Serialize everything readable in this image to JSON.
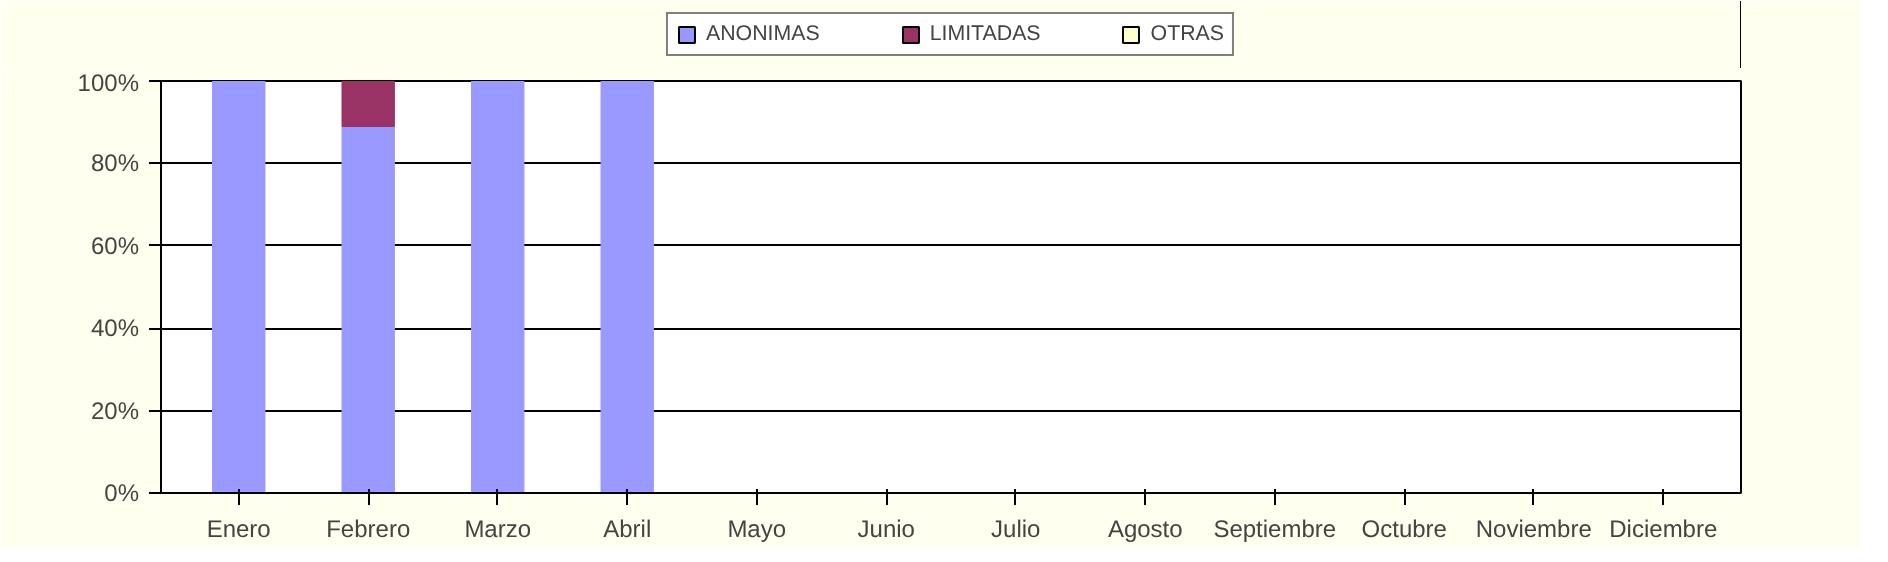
{
  "chart_data": {
    "type": "bar",
    "stacked": true,
    "categories": [
      "Enero",
      "Febrero",
      "Marzo",
      "Abril",
      "Mayo",
      "Junio",
      "Julio",
      "Agosto",
      "Septiembre",
      "Octubre",
      "Noviembre",
      "Diciembre"
    ],
    "series": [
      {
        "name": "ANONIMAS",
        "color": "#9999ff",
        "values": [
          100,
          89,
          100,
          100,
          0,
          0,
          0,
          0,
          0,
          0,
          0,
          0
        ]
      },
      {
        "name": "LIMITADAS",
        "color": "#993366",
        "values": [
          0,
          11,
          0,
          0,
          0,
          0,
          0,
          0,
          0,
          0,
          0,
          0
        ]
      },
      {
        "name": "OTRAS",
        "color": "#ffffcc",
        "values": [
          0,
          0,
          0,
          0,
          0,
          0,
          0,
          0,
          0,
          0,
          0,
          0
        ]
      }
    ],
    "ylim": [
      0,
      100
    ],
    "yticks": [
      {
        "value": 0,
        "label": "0%"
      },
      {
        "value": 20,
        "label": "20%"
      },
      {
        "value": 40,
        "label": "40%"
      },
      {
        "value": 60,
        "label": "60%"
      },
      {
        "value": 80,
        "label": "80%"
      },
      {
        "value": 100,
        "label": "100%"
      }
    ],
    "grid": "y",
    "legend": "top"
  }
}
